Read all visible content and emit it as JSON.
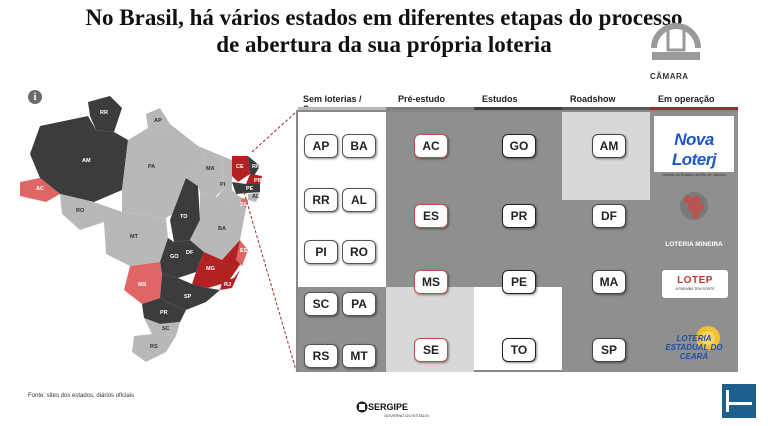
{
  "title": {
    "line1": "No Brasil, há vários estados em diferentes etapas do processo",
    "line2": "de abertura da sua própria loteria"
  },
  "watermark": {
    "label": "CÂMARA"
  },
  "info_icon": {
    "glyph": "i"
  },
  "map_labels": [
    "AM",
    "PA",
    "AP",
    "RR",
    "AC",
    "RO",
    "MT",
    "TO",
    "MA",
    "PI",
    "CE",
    "RN",
    "PB",
    "PE",
    "AL",
    "SE",
    "BA",
    "GO",
    "DF",
    "MG",
    "ES",
    "MS",
    "SP",
    "RJ",
    "PR",
    "SC",
    "RS"
  ],
  "columns": [
    {
      "label": "Sem loterias / Suspensa",
      "bar_color": "#b9b9b9"
    },
    {
      "label": "Pré-estudo",
      "bar_color": "#7f7f7f"
    },
    {
      "label": "Estudos",
      "bar_color": "#3f3f3f"
    },
    {
      "label": "Roadshow",
      "bar_color": "#595959"
    },
    {
      "label": "Em operação",
      "bar_color": "#9b2b2b"
    }
  ],
  "sem_loterias": [
    "AP",
    "BA",
    "RR",
    "AL",
    "PI",
    "RO",
    "SC",
    "PA",
    "RS",
    "MT"
  ],
  "pre_estudo": [
    "AC",
    "ES",
    "MS",
    "SE"
  ],
  "estudos": [
    "GO",
    "PR",
    "PE",
    "TO"
  ],
  "roadshow": [
    "AM",
    "DF",
    "MA",
    "SP"
  ],
  "em_operacao": [
    {
      "name": "Nova Loterj",
      "subtitle": "Loteria do Estado do Rio de Janeiro"
    },
    {
      "name": "LOTERIA MINEIRA",
      "subtitle": ""
    },
    {
      "name": "LOTEP",
      "subtitle": "A PARAÍBA TEM SORTE"
    },
    {
      "name": "LOTERIA ESTADUAL DO CEARÁ",
      "subtitle": ""
    }
  ],
  "source": "Fonte: sites dos estados, diários oficiais",
  "sergipe": {
    "name": "SERGIPE",
    "subtitle": "GOVERNO DO ESTADO"
  },
  "colors": {
    "dark": "#3c3c3c",
    "red": "#b22222",
    "pink": "#e06666",
    "light": "#b8b8b8"
  }
}
